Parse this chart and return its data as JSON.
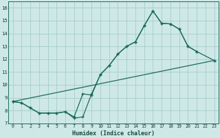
{
  "background_color": "#cde8e6",
  "grid_color": "#a5ccca",
  "line_color": "#1a6b5e",
  "xlabel": "Humidex (Indice chaleur)",
  "xlim": [
    -0.5,
    23.5
  ],
  "ylim": [
    7,
    16.5
  ],
  "xticks": [
    0,
    1,
    2,
    3,
    4,
    5,
    6,
    7,
    8,
    9,
    10,
    11,
    12,
    13,
    14,
    15,
    16,
    17,
    18,
    19,
    20,
    21,
    22,
    23
  ],
  "yticks": [
    7,
    8,
    9,
    10,
    11,
    12,
    13,
    14,
    15,
    16
  ],
  "line1": {
    "x": [
      0,
      1,
      2,
      3,
      4,
      5,
      6,
      7,
      8,
      9,
      10,
      11,
      12,
      13,
      14,
      15,
      16,
      17,
      18,
      19,
      20,
      21
    ],
    "y": [
      8.7,
      8.6,
      8.2,
      7.8,
      7.8,
      7.8,
      7.9,
      7.4,
      7.5,
      9.3,
      10.8,
      11.5,
      12.4,
      13.0,
      13.35,
      14.6,
      15.75,
      14.8,
      14.75,
      14.35,
      13.0,
      12.6
    ]
  },
  "line2": {
    "x": [
      0,
      1,
      2,
      3,
      4,
      5,
      6,
      7,
      8,
      9,
      10,
      11,
      12,
      13,
      14,
      15,
      16,
      17,
      18,
      19,
      20,
      21,
      23
    ],
    "y": [
      8.7,
      8.6,
      8.2,
      7.8,
      7.8,
      7.8,
      7.9,
      7.5,
      9.3,
      9.2,
      10.8,
      11.5,
      12.4,
      13.0,
      13.35,
      14.6,
      15.75,
      14.8,
      14.75,
      14.35,
      13.0,
      12.6,
      11.9
    ]
  },
  "line3": {
    "x": [
      0,
      23
    ],
    "y": [
      8.7,
      11.9
    ]
  }
}
